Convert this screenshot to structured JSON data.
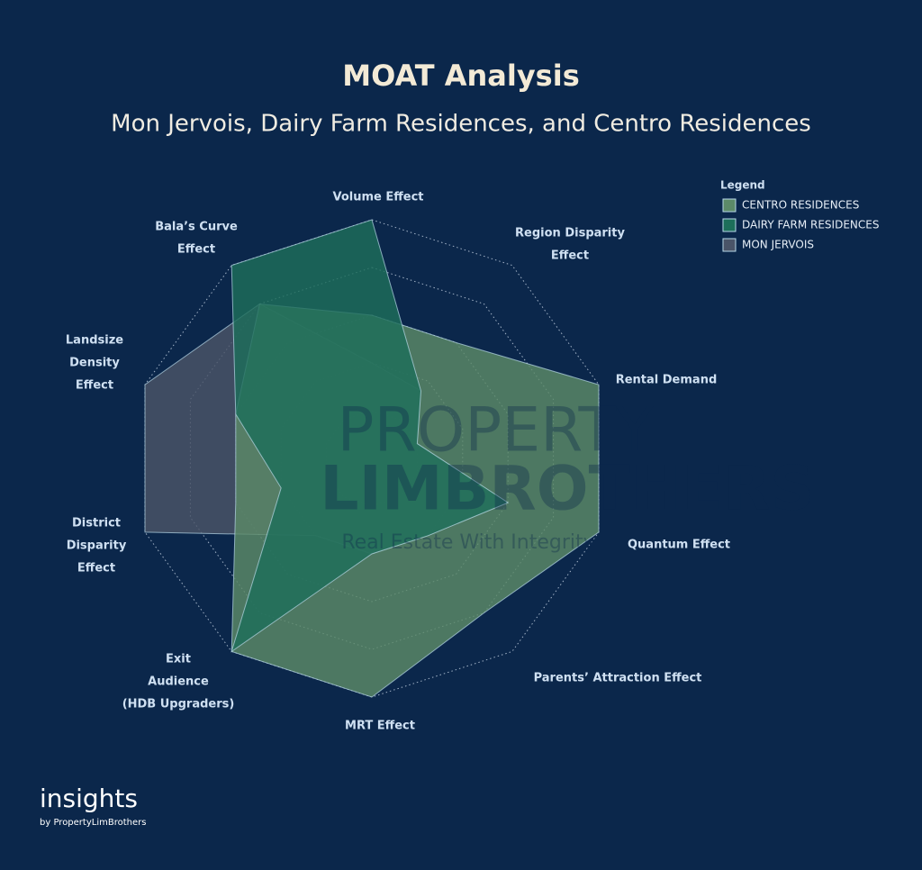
{
  "chart_data": {
    "type": "radar",
    "title": "MOAT Analysis",
    "subtitle": "Mon Jervois, Dairy Farm Residences, and Centro Residences",
    "categories": [
      [
        "Volume Effect"
      ],
      [
        "Region Disparity",
        "Effect"
      ],
      [
        "Rental Demand"
      ],
      [
        "Quantum Effect"
      ],
      [
        "Parents’ Attraction Effect"
      ],
      [
        "MRT Effect"
      ],
      [
        "Exit",
        "Audience",
        "(HDB Upgraders)"
      ],
      [
        "District",
        "Disparity",
        "Effect"
      ],
      [
        "Landsize",
        "Density",
        "Effect"
      ],
      [
        "Bala’s Curve",
        "Effect"
      ]
    ],
    "ylim": [
      0,
      10
    ],
    "yticks": [
      2,
      4,
      6,
      8,
      10
    ],
    "grid": true,
    "legend_title": "Legend",
    "legend_position": "top-right",
    "series": [
      {
        "name": "MON JERVOIS",
        "color": "#4a5468",
        "values": [
          4,
          3.5,
          2,
          6,
          4,
          4,
          4,
          10,
          10,
          8
        ]
      },
      {
        "name": "CENTRO RESIDENCES",
        "color": "#5c8a68",
        "values": [
          6,
          6,
          10,
          10,
          8,
          10,
          10,
          6,
          6,
          8
        ]
      },
      {
        "name": "DAIRY FARM RESIDENCES",
        "color": "#1d6e5a",
        "values": [
          10,
          3.5,
          2,
          6,
          4,
          4,
          10,
          4,
          6,
          10
        ]
      }
    ],
    "legend_order": [
      1,
      2,
      0
    ],
    "watermark": [
      "PROPERTY",
      "LIMBROTHERS",
      "Real Estate With Integrity"
    ],
    "footer": {
      "brand": "insights",
      "byline": "by PropertyLimBrothers"
    }
  }
}
